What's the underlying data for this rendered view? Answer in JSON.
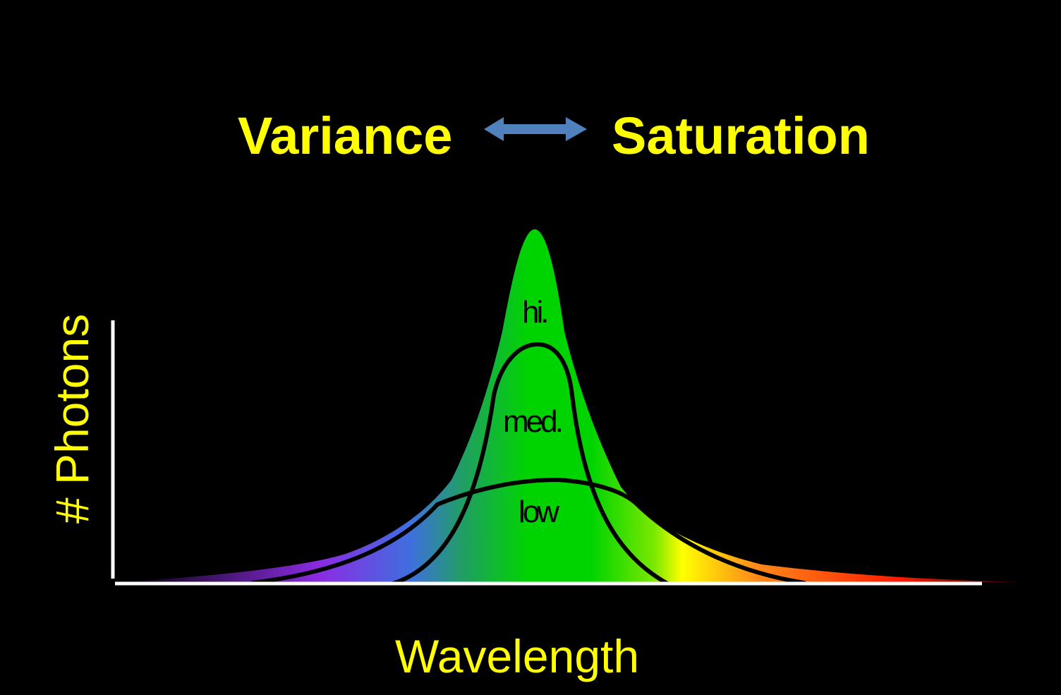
{
  "title": {
    "left": "Variance",
    "right": "Saturation"
  },
  "axes": {
    "x_label": "Wavelength",
    "y_label": "# Photons"
  },
  "curves": [
    {
      "id": "hi",
      "label": "hi."
    },
    {
      "id": "med",
      "label": "med."
    },
    {
      "id": "low",
      "label": "low"
    }
  ],
  "colors": {
    "background": "#000000",
    "text": "#FFFF00",
    "arrow": "#4F81BD",
    "axis": "#FFFFFF",
    "curve_line": "#000000",
    "label": "#000000",
    "spectrum": [
      "#2A0033",
      "#8B2BE2",
      "#3F6FE0",
      "#1FA060",
      "#00D400",
      "#7CE800",
      "#FFFF00",
      "#FF8C1A",
      "#FF1A00",
      "#1A0000"
    ]
  },
  "icons": {
    "title_arrow": "double-headed-arrow-icon"
  }
}
